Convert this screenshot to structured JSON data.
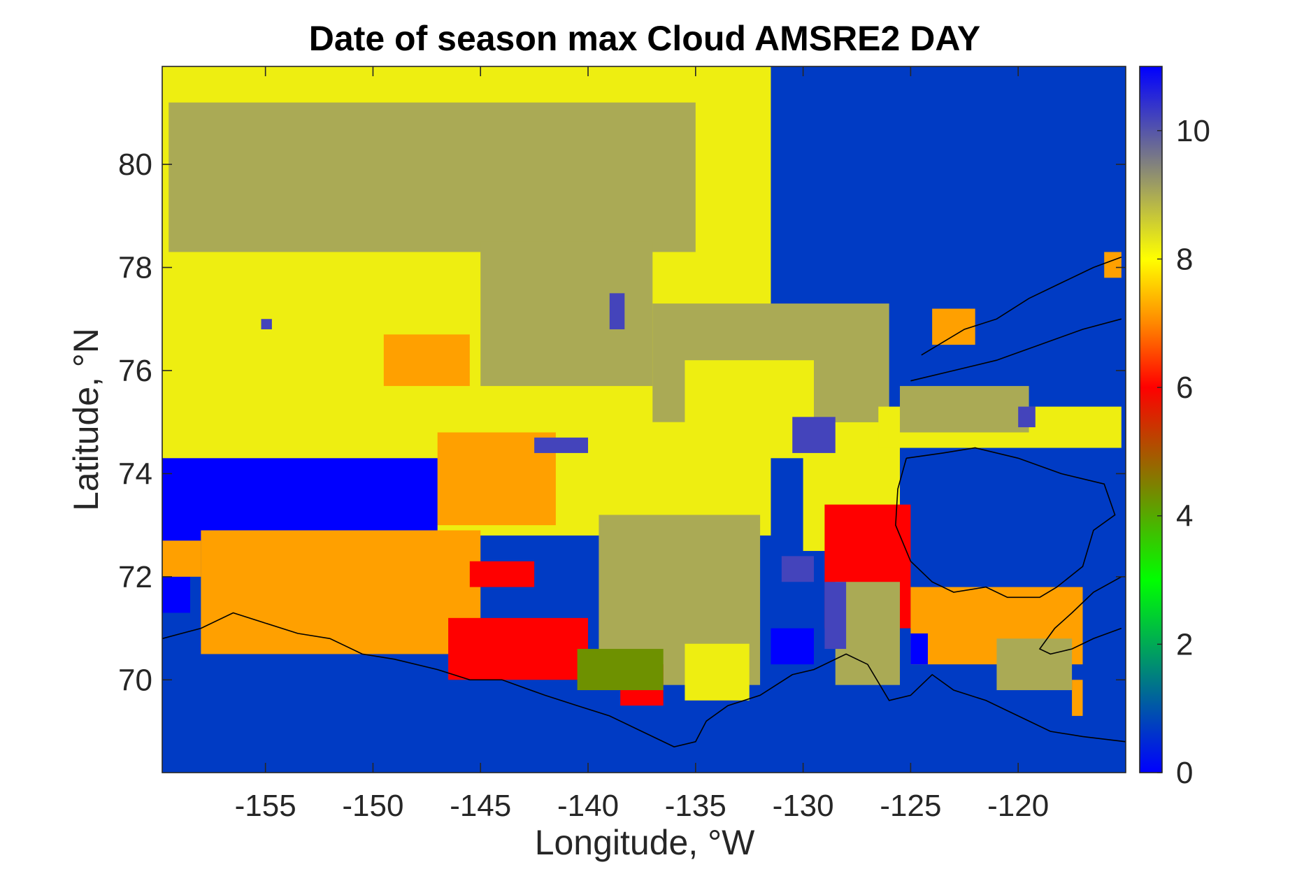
{
  "chart_data": {
    "type": "heatmap",
    "title": "Date of season max Cloud AMSRE2 DAY",
    "xlabel": "Longitude, °W",
    "ylabel": "Latitude, °N",
    "xlim": [
      -159.8,
      -115
    ],
    "ylim": [
      68.2,
      81.9
    ],
    "xticks": [
      -155,
      -150,
      -145,
      -140,
      -135,
      -130,
      -125,
      -120
    ],
    "xtick_labels": [
      "-155",
      "-150",
      "-145",
      "-140",
      "-135",
      "-130",
      "-125",
      "-120"
    ],
    "yticks": [
      70,
      72,
      74,
      76,
      78,
      80
    ],
    "ytick_labels": [
      "70",
      "72",
      "74",
      "76",
      "78",
      "80"
    ],
    "colorbar": {
      "range": [
        0,
        11
      ],
      "ticks": [
        0,
        2,
        4,
        6,
        8,
        10
      ],
      "tick_labels": [
        "0",
        "2",
        "4",
        "6",
        "8",
        "10"
      ],
      "colors": [
        "#0000ff",
        "#0055aa",
        "#00aa55",
        "#00ff00",
        "#55aa00",
        "#aa5500",
        "#ff0000",
        "#ff8800",
        "#ffff00",
        "#aaaa55",
        "#5555aa",
        "#0000ff"
      ]
    },
    "background_value": 0.7,
    "regions": [
      {
        "value": 8.2,
        "lon": [
          -159.8,
          -131.5
        ],
        "lat": [
          72.8,
          81.9
        ]
      },
      {
        "value": 9.0,
        "lon": [
          -159.5,
          -135.0
        ],
        "lat": [
          78.3,
          81.2
        ]
      },
      {
        "value": 9.0,
        "lon": [
          -145.0,
          -137.0
        ],
        "lat": [
          75.7,
          78.5
        ]
      },
      {
        "value": 9.0,
        "lon": [
          -137.0,
          -126.0
        ],
        "lat": [
          75.0,
          77.3
        ]
      },
      {
        "value": 8.2,
        "lon": [
          -135.5,
          -129.5
        ],
        "lat": [
          74.3,
          76.2
        ]
      },
      {
        "value": 8.2,
        "lon": [
          -130.0,
          -125.5
        ],
        "lat": [
          72.5,
          75.0
        ]
      },
      {
        "value": 8.2,
        "lon": [
          -126.5,
          -115.2
        ],
        "lat": [
          74.5,
          75.3
        ]
      },
      {
        "value": 9.0,
        "lon": [
          -125.5,
          -119.5
        ],
        "lat": [
          74.8,
          75.7
        ]
      },
      {
        "value": 7.2,
        "lon": [
          -124.0,
          -122.0
        ],
        "lat": [
          76.5,
          77.2
        ]
      },
      {
        "value": 7.2,
        "lon": [
          -116.0,
          -115.2
        ],
        "lat": [
          77.8,
          78.3
        ]
      },
      {
        "value": 9.0,
        "lon": [
          -139.5,
          -132.0
        ],
        "lat": [
          69.9,
          73.2
        ]
      },
      {
        "value": 8.2,
        "lon": [
          -135.5,
          -132.5
        ],
        "lat": [
          69.6,
          70.7
        ]
      },
      {
        "value": 7.2,
        "lon": [
          -147.0,
          -141.5
        ],
        "lat": [
          73.0,
          74.8
        ]
      },
      {
        "value": 7.2,
        "lon": [
          -149.5,
          -145.5
        ],
        "lat": [
          75.7,
          76.7
        ]
      },
      {
        "value": 0.0,
        "lon": [
          -159.8,
          -147.0
        ],
        "lat": [
          72.7,
          74.3
        ]
      },
      {
        "value": 0.0,
        "lon": [
          -159.8,
          -158.5
        ],
        "lat": [
          71.3,
          72.1
        ]
      },
      {
        "value": 7.2,
        "lon": [
          -158.0,
          -145.0
        ],
        "lat": [
          70.5,
          72.9
        ]
      },
      {
        "value": 7.2,
        "lon": [
          -159.8,
          -158.0
        ],
        "lat": [
          72.0,
          72.7
        ]
      },
      {
        "value": 6.0,
        "lon": [
          -146.5,
          -140.0
        ],
        "lat": [
          70.0,
          71.2
        ]
      },
      {
        "value": 6.0,
        "lon": [
          -145.5,
          -142.5
        ],
        "lat": [
          71.8,
          72.3
        ]
      },
      {
        "value": 6.0,
        "lon": [
          -138.5,
          -136.5
        ],
        "lat": [
          69.5,
          70.3
        ]
      },
      {
        "value": 4.3,
        "lon": [
          -140.5,
          -136.5
        ],
        "lat": [
          69.8,
          70.6
        ]
      },
      {
        "value": 6.0,
        "lon": [
          -129.0,
          -125.0
        ],
        "lat": [
          71.0,
          73.4
        ]
      },
      {
        "value": 9.0,
        "lon": [
          -128.5,
          -125.5
        ],
        "lat": [
          69.9,
          71.9
        ]
      },
      {
        "value": 10.2,
        "lon": [
          -129.0,
          -128.0
        ],
        "lat": [
          70.6,
          71.9
        ]
      },
      {
        "value": 0.0,
        "lon": [
          -131.5,
          -129.5
        ],
        "lat": [
          70.3,
          71.0
        ]
      },
      {
        "value": 10.2,
        "lon": [
          -131.0,
          -129.5
        ],
        "lat": [
          71.9,
          72.4
        ]
      },
      {
        "value": 7.2,
        "lon": [
          -125.0,
          -117.0
        ],
        "lat": [
          70.3,
          71.8
        ]
      },
      {
        "value": 9.0,
        "lon": [
          -121.0,
          -117.5
        ],
        "lat": [
          69.8,
          70.8
        ]
      },
      {
        "value": 7.2,
        "lon": [
          -117.5,
          -117.0
        ],
        "lat": [
          69.3,
          70.0
        ]
      },
      {
        "value": 0.0,
        "lon": [
          -125.0,
          -124.2
        ],
        "lat": [
          70.3,
          70.9
        ]
      },
      {
        "value": 10.2,
        "lon": [
          -142.5,
          -140.0
        ],
        "lat": [
          74.4,
          74.7
        ]
      },
      {
        "value": 10.2,
        "lon": [
          -130.5,
          -128.5
        ],
        "lat": [
          74.4,
          75.1
        ]
      },
      {
        "value": 10.2,
        "lon": [
          -139.0,
          -138.3
        ],
        "lat": [
          76.8,
          77.5
        ]
      },
      {
        "value": 10.2,
        "lon": [
          -155.2,
          -154.7
        ],
        "lat": [
          76.8,
          77.0
        ]
      },
      {
        "value": 10.2,
        "lon": [
          -120.0,
          -119.2
        ],
        "lat": [
          74.9,
          75.3
        ]
      }
    ],
    "coastlines": [
      {
        "name": "north-american-coast",
        "points": [
          [
            -159.8,
            70.8
          ],
          [
            -158,
            71.0
          ],
          [
            -156.5,
            71.3
          ],
          [
            -155,
            71.1
          ],
          [
            -153.5,
            70.9
          ],
          [
            -152,
            70.8
          ],
          [
            -150.5,
            70.5
          ],
          [
            -149,
            70.4
          ],
          [
            -147,
            70.2
          ],
          [
            -145.5,
            70.0
          ],
          [
            -144,
            70.0
          ],
          [
            -142,
            69.7
          ],
          [
            -140.5,
            69.5
          ],
          [
            -139,
            69.3
          ],
          [
            -137.5,
            69.0
          ],
          [
            -136,
            68.7
          ],
          [
            -135,
            68.8
          ],
          [
            -134.5,
            69.2
          ],
          [
            -133.5,
            69.5
          ],
          [
            -132,
            69.7
          ],
          [
            -130.5,
            70.1
          ],
          [
            -129.5,
            70.2
          ],
          [
            -128,
            70.5
          ],
          [
            -127,
            70.3
          ],
          [
            -126,
            69.6
          ],
          [
            -125,
            69.7
          ],
          [
            -124,
            70.1
          ],
          [
            -123,
            69.8
          ],
          [
            -121.5,
            69.6
          ],
          [
            -120,
            69.3
          ],
          [
            -118.5,
            69.0
          ],
          [
            -117,
            68.9
          ],
          [
            -115,
            68.8
          ]
        ]
      },
      {
        "name": "banks-island-coast",
        "points": [
          [
            -125.2,
            74.3
          ],
          [
            -123.5,
            74.4
          ],
          [
            -122,
            74.5
          ],
          [
            -120,
            74.3
          ],
          [
            -118,
            74.0
          ],
          [
            -116,
            73.8
          ],
          [
            -115.5,
            73.2
          ],
          [
            -116.5,
            72.9
          ],
          [
            -117,
            72.2
          ],
          [
            -118.2,
            71.8
          ],
          [
            -119,
            71.6
          ],
          [
            -120.5,
            71.6
          ],
          [
            -121.5,
            71.8
          ],
          [
            -123,
            71.7
          ],
          [
            -124,
            71.9
          ],
          [
            -125,
            72.3
          ],
          [
            -125.7,
            73.0
          ],
          [
            -125.6,
            73.7
          ],
          [
            -125.2,
            74.3
          ]
        ]
      },
      {
        "name": "northern-islands-coast",
        "points": [
          [
            -124.5,
            76.3
          ],
          [
            -122.5,
            76.8
          ],
          [
            -121,
            77.0
          ],
          [
            -119.5,
            77.4
          ],
          [
            -118,
            77.7
          ],
          [
            -116.5,
            78.0
          ],
          [
            -115.2,
            78.2
          ]
        ]
      },
      {
        "name": "northern-islands-coast-2",
        "points": [
          [
            -125,
            75.8
          ],
          [
            -123,
            76.0
          ],
          [
            -121,
            76.2
          ],
          [
            -119,
            76.5
          ],
          [
            -117,
            76.8
          ],
          [
            -115.2,
            77.0
          ]
        ]
      },
      {
        "name": "victoria-island-coast",
        "points": [
          [
            -115.2,
            71.0
          ],
          [
            -116.5,
            70.8
          ],
          [
            -117.5,
            70.6
          ],
          [
            -118.5,
            70.5
          ],
          [
            -119,
            70.6
          ],
          [
            -118.3,
            71.0
          ],
          [
            -117.5,
            71.3
          ],
          [
            -116.5,
            71.7
          ],
          [
            -115.2,
            72.0
          ]
        ]
      }
    ]
  }
}
